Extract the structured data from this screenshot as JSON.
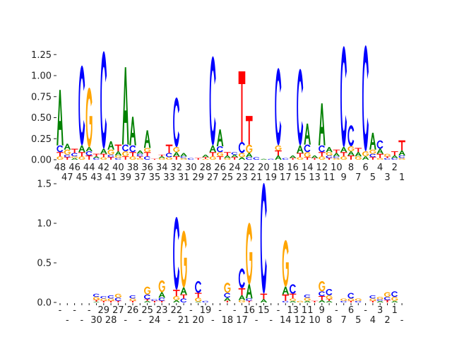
{
  "colors": {
    "A": "#008000",
    "C": "#0000ff",
    "G": "#ffa500",
    "T": "#ff0000"
  },
  "chart_data": [
    {
      "type": "sequence-logo",
      "ylabel": "",
      "ylim": [
        0,
        1.38
      ],
      "yticks": [
        "0.00",
        "0.25",
        "0.50",
        "0.75",
        "1.00",
        "1.25"
      ],
      "ytick_values": [
        0,
        0.25,
        0.5,
        0.75,
        1.0,
        1.25
      ],
      "xtick_labels": [
        "48",
        "47",
        "46",
        "45",
        "44",
        "43",
        "42",
        "41",
        "40",
        "39",
        "38",
        "37",
        "36",
        "35",
        "34",
        "33",
        "32",
        "31",
        "30",
        "29",
        "28",
        "27",
        "26",
        "25",
        "24",
        "23",
        "22",
        "21",
        "20",
        "19",
        "18",
        "17",
        "16",
        "15",
        "14",
        "13",
        "12",
        "11",
        "10",
        "9",
        "8",
        "7",
        "6",
        "5",
        "4",
        "3",
        "2",
        "1"
      ],
      "positions": [
        [
          [
            "G",
            0.04
          ],
          [
            "T",
            0.05
          ],
          [
            "C",
            0.08
          ],
          [
            "A",
            0.66
          ]
        ],
        [
          [
            "T",
            0.03
          ],
          [
            "C",
            0.03
          ],
          [
            "G",
            0.06
          ],
          [
            "A",
            0.07
          ]
        ],
        [
          [
            "A",
            0.02
          ],
          [
            "G",
            0.02
          ],
          [
            "C",
            0.04
          ],
          [
            "T",
            0.05
          ]
        ],
        [
          [
            "G",
            0.04
          ],
          [
            "T",
            0.05
          ],
          [
            "A",
            0.08
          ],
          [
            "C",
            0.95
          ]
        ],
        [
          [
            "T",
            0.05
          ],
          [
            "C",
            0.05
          ],
          [
            "A",
            0.05
          ],
          [
            "G",
            0.71
          ]
        ],
        [
          [
            "C",
            0.02
          ],
          [
            "A",
            0.02
          ],
          [
            "T",
            0.03
          ]
        ],
        [
          [
            "G",
            0.03
          ],
          [
            "T",
            0.04
          ],
          [
            "A",
            0.06
          ],
          [
            "C",
            1.16
          ]
        ],
        [
          [
            "T",
            0.03
          ],
          [
            "C",
            0.03
          ],
          [
            "G",
            0.06
          ],
          [
            "A",
            0.1
          ]
        ],
        [
          [
            "C",
            0.02
          ],
          [
            "G",
            0.03
          ],
          [
            "A",
            0.05
          ],
          [
            "T",
            0.08
          ]
        ],
        [
          [
            "T",
            0.04
          ],
          [
            "G",
            0.06
          ],
          [
            "C",
            0.08
          ],
          [
            "A",
            0.92
          ]
        ],
        [
          [
            "G",
            0.04
          ],
          [
            "T",
            0.05
          ],
          [
            "C",
            0.08
          ],
          [
            "A",
            0.34
          ]
        ],
        [
          [
            "G",
            0.02
          ],
          [
            "T",
            0.02
          ],
          [
            "C",
            0.03
          ],
          [
            "A",
            0.04
          ]
        ],
        [
          [
            "C",
            0.04
          ],
          [
            "T",
            0.05
          ],
          [
            "G",
            0.05
          ],
          [
            "A",
            0.21
          ]
        ],
        [
          [
            "T",
            0.01
          ]
        ],
        [
          [
            "G",
            0.02
          ],
          [
            "A",
            0.02
          ],
          [
            "T",
            0.02
          ]
        ],
        [
          [
            "G",
            0.03
          ],
          [
            "C",
            0.05
          ],
          [
            "T",
            0.1
          ]
        ],
        [
          [
            "T",
            0.04
          ],
          [
            "A",
            0.05
          ],
          [
            "G",
            0.06
          ],
          [
            "C",
            0.59
          ]
        ],
        [
          [
            "G",
            0.02
          ],
          [
            "C",
            0.02
          ],
          [
            "A",
            0.04
          ]
        ],
        [
          [
            "C",
            0.02
          ]
        ],
        [
          [
            "T",
            0.02
          ]
        ],
        [
          [
            "G",
            0.01
          ],
          [
            "T",
            0.02
          ],
          [
            "A",
            0.03
          ]
        ],
        [
          [
            "G",
            0.04
          ],
          [
            "T",
            0.05
          ],
          [
            "A",
            0.08
          ],
          [
            "C",
            1.06
          ]
        ],
        [
          [
            "T",
            0.04
          ],
          [
            "G",
            0.05
          ],
          [
            "C",
            0.07
          ],
          [
            "A",
            0.2
          ]
        ],
        [
          [
            "G",
            0.02
          ],
          [
            "A",
            0.03
          ],
          [
            "T",
            0.04
          ]
        ],
        [
          [
            "T",
            0.03
          ],
          [
            "A",
            0.03
          ],
          [
            "C",
            0.03
          ]
        ],
        [
          [
            "A",
            0.03
          ],
          [
            "G",
            0.05
          ],
          [
            "C",
            0.13
          ],
          [
            "T",
            0.84
          ]
        ],
        [
          [
            "C",
            0.03
          ],
          [
            "A",
            0.05
          ],
          [
            "G",
            0.1
          ],
          [
            "T",
            0.34
          ]
        ],
        [
          [
            "C",
            0.03
          ]
        ],
        [
          [
            "A",
            0.01
          ]
        ],
        [
          [
            "C",
            0.01
          ]
        ],
        [
          [
            "A",
            0.05
          ],
          [
            "T",
            0.06
          ],
          [
            "G",
            0.06
          ],
          [
            "C",
            0.92
          ]
        ],
        [
          [
            "C",
            0.02
          ]
        ],
        [
          [
            "T",
            0.02
          ],
          [
            "A",
            0.03
          ]
        ],
        [
          [
            "G",
            0.03
          ],
          [
            "T",
            0.05
          ],
          [
            "A",
            0.09
          ],
          [
            "C",
            0.91
          ]
        ],
        [
          [
            "T",
            0.03
          ],
          [
            "G",
            0.06
          ],
          [
            "C",
            0.09
          ],
          [
            "A",
            0.25
          ]
        ],
        [
          [
            "T",
            0.02
          ],
          [
            "A",
            0.03
          ]
        ],
        [
          [
            "G",
            0.04
          ],
          [
            "T",
            0.05
          ],
          [
            "C",
            0.08
          ],
          [
            "A",
            0.5
          ]
        ],
        [
          [
            "T",
            0.02
          ],
          [
            "C",
            0.03
          ],
          [
            "G",
            0.04
          ],
          [
            "A",
            0.06
          ]
        ],
        [
          [
            "G",
            0.02
          ],
          [
            "C",
            0.02
          ],
          [
            "A",
            0.04
          ],
          [
            "T",
            0.04
          ]
        ],
        [
          [
            "G",
            0.04
          ],
          [
            "T",
            0.05
          ],
          [
            "A",
            0.06
          ],
          [
            "C",
            1.2
          ]
        ],
        [
          [
            "T",
            0.05
          ],
          [
            "A",
            0.05
          ],
          [
            "G",
            0.06
          ],
          [
            "C",
            0.25
          ]
        ],
        [
          [
            "G",
            0.04
          ],
          [
            "A",
            0.05
          ],
          [
            "T",
            0.05
          ]
        ],
        [
          [
            "A",
            0.04
          ],
          [
            "G",
            0.06
          ],
          [
            "C",
            1.26
          ]
        ],
        [
          [
            "T",
            0.03
          ],
          [
            "C",
            0.04
          ],
          [
            "G",
            0.05
          ],
          [
            "A",
            0.2
          ]
        ],
        [
          [
            "G",
            0.02
          ],
          [
            "T",
            0.05
          ],
          [
            "A",
            0.06
          ],
          [
            "C",
            0.1
          ]
        ],
        [
          [
            "C",
            0.02
          ],
          [
            "T",
            0.02
          ],
          [
            "G",
            0.03
          ]
        ],
        [
          [
            "C",
            0.02
          ],
          [
            "A",
            0.03
          ],
          [
            "T",
            0.05
          ]
        ],
        [
          [
            "G",
            0.02
          ],
          [
            "C",
            0.03
          ],
          [
            "A",
            0.06
          ],
          [
            "T",
            0.12
          ]
        ]
      ]
    },
    {
      "type": "sequence-logo",
      "ylabel": "",
      "ylim": [
        0,
        1.55
      ],
      "yticks": [
        "0.0",
        "0.5",
        "1.0",
        "1.5"
      ],
      "ytick_values": [
        0,
        0.5,
        1.0,
        1.5
      ],
      "xtick_labels": [
        "-",
        "-",
        "-",
        "-",
        "-",
        "30",
        "29",
        "28",
        "27",
        "-",
        "26",
        "-",
        "25",
        "24",
        "23",
        "-",
        "22",
        "21",
        "-",
        "20",
        "19",
        "-",
        "-",
        "18",
        "-",
        "17",
        "16",
        "-",
        "15",
        "-",
        "-",
        "14",
        "13",
        "12",
        "11",
        "10",
        "9",
        "8",
        "-",
        "7",
        "6",
        "5",
        "-",
        "4",
        "3",
        "2",
        "1",
        "-"
      ],
      "positions": [
        [],
        [],
        [],
        [],
        [],
        [
          [
            "A",
            0.01
          ],
          [
            "T",
            0.02
          ],
          [
            "G",
            0.04
          ],
          [
            "C",
            0.04
          ]
        ],
        [
          [
            "T",
            0.02
          ],
          [
            "G",
            0.03
          ],
          [
            "C",
            0.03
          ]
        ],
        [
          [
            "T",
            0.02
          ],
          [
            "G",
            0.03
          ],
          [
            "C",
            0.04
          ]
        ],
        [
          [
            "T",
            0.02
          ],
          [
            "C",
            0.04
          ],
          [
            "G",
            0.05
          ]
        ],
        [],
        [
          [
            "T",
            0.02
          ],
          [
            "G",
            0.03
          ],
          [
            "C",
            0.04
          ]
        ],
        [],
        [
          [
            "A",
            0.02
          ],
          [
            "T",
            0.02
          ],
          [
            "C",
            0.06
          ],
          [
            "G",
            0.1
          ]
        ],
        [
          [
            "T",
            0.02
          ],
          [
            "C",
            0.02
          ]
        ],
        [
          [
            "T",
            0.02
          ],
          [
            "C",
            0.04
          ],
          [
            "A",
            0.07
          ],
          [
            "G",
            0.15
          ]
        ],
        [],
        [
          [
            "A",
            0.03
          ],
          [
            "G",
            0.05
          ],
          [
            "T",
            0.08
          ],
          [
            "C",
            0.92
          ]
        ],
        [
          [
            "C",
            0.05
          ],
          [
            "T",
            0.05
          ],
          [
            "A",
            0.09
          ],
          [
            "G",
            0.72
          ]
        ],
        [],
        [
          [
            "A",
            0.01
          ],
          [
            "G",
            0.05
          ],
          [
            "T",
            0.06
          ],
          [
            "C",
            0.15
          ]
        ],
        [
          [
            "C",
            0.02
          ]
        ],
        [],
        [],
        [
          [
            "T",
            0.02
          ],
          [
            "A",
            0.04
          ],
          [
            "C",
            0.06
          ],
          [
            "G",
            0.13
          ]
        ],
        [],
        [
          [
            "G",
            0.03
          ],
          [
            "A",
            0.06
          ],
          [
            "T",
            0.09
          ],
          [
            "C",
            0.25
          ]
        ],
        [
          [
            "T",
            0.02
          ],
          [
            "C",
            0.03
          ],
          [
            "A",
            0.18
          ],
          [
            "G",
            0.78
          ]
        ],
        [],
        [
          [
            "A",
            0.04
          ],
          [
            "T",
            0.07
          ],
          [
            "C",
            1.4
          ]
        ],
        [],
        [],
        [
          [
            "C",
            0.02
          ],
          [
            "T",
            0.08
          ],
          [
            "A",
            0.1
          ],
          [
            "G",
            0.59
          ]
        ],
        [
          [
            "A",
            0.02
          ],
          [
            "G",
            0.03
          ],
          [
            "T",
            0.06
          ],
          [
            "C",
            0.12
          ]
        ],
        [
          [
            "G",
            0.02
          ]
        ],
        [
          [
            "A",
            0.02
          ],
          [
            "G",
            0.04
          ],
          [
            "C",
            0.04
          ]
        ],
        [
          [
            "T",
            0.02
          ]
        ],
        [
          [
            "A",
            0.03
          ],
          [
            "T",
            0.05
          ],
          [
            "C",
            0.06
          ],
          [
            "G",
            0.13
          ]
        ],
        [
          [
            "A",
            0.02
          ],
          [
            "T",
            0.02
          ],
          [
            "G",
            0.05
          ],
          [
            "C",
            0.08
          ]
        ],
        [],
        [
          [
            "C",
            0.02
          ],
          [
            "G",
            0.03
          ]
        ],
        [
          [
            "T",
            0.02
          ],
          [
            "G",
            0.03
          ],
          [
            "C",
            0.07
          ]
        ],
        [
          [
            "C",
            0.02
          ],
          [
            "G",
            0.03
          ]
        ],
        [],
        [
          [
            "T",
            0.02
          ],
          [
            "G",
            0.03
          ],
          [
            "C",
            0.04
          ]
        ],
        [
          [
            "A",
            0.02
          ],
          [
            "C",
            0.02
          ],
          [
            "G",
            0.03
          ]
        ],
        [
          [
            "T",
            0.03
          ],
          [
            "C",
            0.04
          ],
          [
            "G",
            0.06
          ]
        ],
        [
          [
            "A",
            0.02
          ],
          [
            "G",
            0.05
          ],
          [
            "C",
            0.07
          ]
        ],
        []
      ]
    }
  ]
}
